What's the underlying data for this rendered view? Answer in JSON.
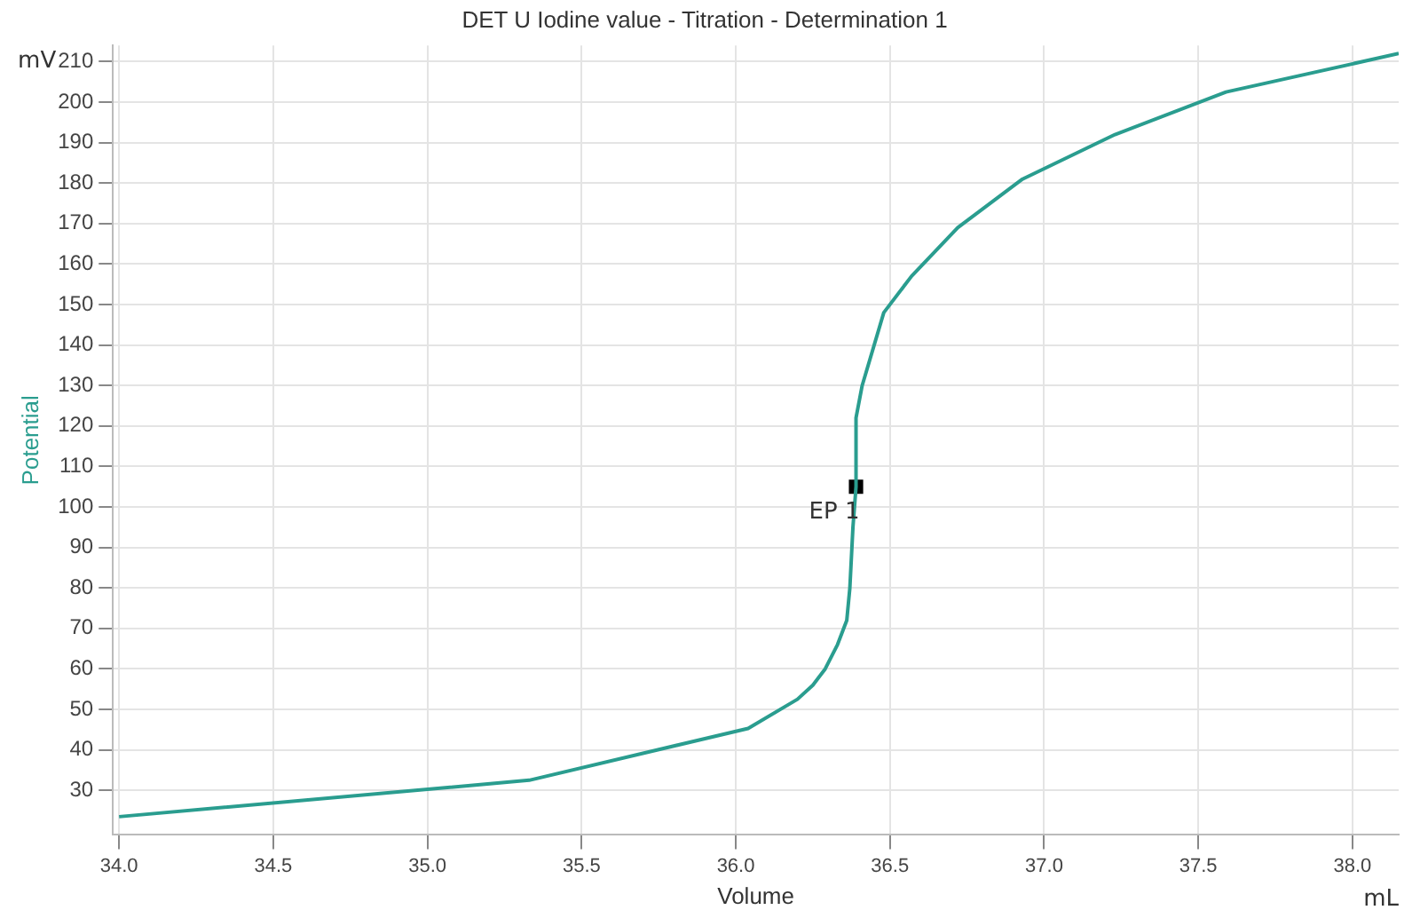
{
  "chart_data": {
    "type": "line",
    "title": "DET U Iodine value - Titration - Determination 1",
    "xlabel": "Volume",
    "ylabel": "Potential",
    "annotations": [
      "mV",
      "mL"
    ],
    "xlim": [
      33.98,
      38.15
    ],
    "xticks": [
      {
        "value": 34,
        "label": "34.0"
      },
      34.5,
      {
        "value": 35,
        "label": "35.0"
      },
      35.5,
      {
        "value": 36,
        "label": "36.0"
      },
      36.5,
      {
        "value": 37,
        "label": "37.0"
      },
      37.5,
      {
        "value": 38,
        "label": "38.0"
      }
    ],
    "ylim": [
      19,
      214
    ],
    "yticks": [
      30,
      40,
      50,
      60,
      70,
      80,
      90,
      100,
      110,
      120,
      130,
      140,
      150,
      160,
      170,
      180,
      190,
      200,
      210
    ],
    "grid": true,
    "legend": false,
    "line_style": "solid",
    "series": [
      {
        "color": "#2a9d8f",
        "marker": "none",
        "x": [
          34.0,
          35.33,
          36.04,
          36.2,
          36.25,
          36.29,
          36.33,
          36.36,
          36.37,
          36.38,
          36.39,
          36.39,
          36.41,
          36.48,
          36.57,
          36.72,
          36.93,
          37.23,
          37.59,
          38.15
        ],
        "values": [
          23.5,
          32.5,
          45.3,
          52.5,
          56,
          60,
          66,
          72,
          80,
          95,
          105,
          122,
          130,
          148,
          157,
          169,
          181,
          192,
          202.5,
          212
        ]
      },
      {
        "type": "scatter",
        "name": "EP 1",
        "color": "#000000",
        "marker": "square",
        "x": [
          36.39
        ],
        "values": [
          105
        ]
      }
    ]
  }
}
